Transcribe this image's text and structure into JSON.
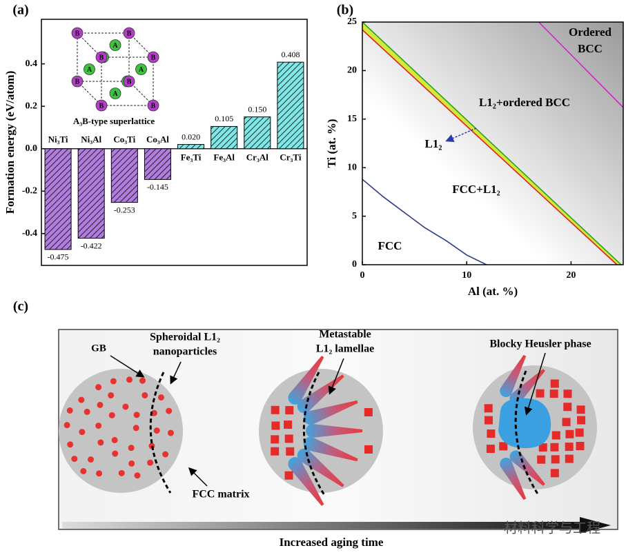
{
  "panel_labels": [
    "(a)",
    "(b)",
    "(c)"
  ],
  "chart_data": [
    {
      "type": "bar",
      "y_label": "Formation energy (eV/atom)",
      "categories": [
        "Ni₃Ti",
        "Ni₃Al",
        "Co₃Ti",
        "Co₃Al",
        "Fe₃Ti",
        "Fe₃Al",
        "Cr₃Al",
        "Cr₃Ti"
      ],
      "values": [
        -0.475,
        -0.422,
        -0.253,
        -0.145,
        0.02,
        0.105,
        0.15,
        0.408
      ],
      "value_labels": [
        "-0.475",
        "-0.422",
        "-0.253",
        "-0.145",
        "0.020",
        "0.105",
        "0.150",
        "0.408"
      ],
      "colors": [
        "#b07ddc",
        "#b07ddc",
        "#b07ddc",
        "#b07ddc",
        "#80e6e6",
        "#80e6e6",
        "#80e6e6",
        "#80e6e6"
      ],
      "ylim": [
        -0.55,
        0.61
      ],
      "yticks": [
        -0.4,
        -0.2,
        {
          "value": 0,
          "label": "0.0"
        },
        0.2,
        0.4
      ],
      "inset": {
        "caption": "A₃B-type superlattice",
        "atoms": [
          {
            "label": "A",
            "color": "#3fc23f"
          },
          {
            "label": "B",
            "color": "#b43cc8"
          }
        ]
      }
    },
    {
      "type": "line",
      "x_label": "Al (at. %)",
      "y_label": "Ti (at. %)",
      "xlim": [
        0,
        25
      ],
      "ylim": [
        0,
        25
      ],
      "xticks": [
        0,
        10,
        20
      ],
      "yticks": [
        0,
        5,
        10,
        15,
        20,
        25
      ],
      "band_color": "#d4e83a",
      "series": [
        {
          "color": "#e02020",
          "x": [
            0,
            24.4
          ],
          "values": [
            24.2,
            0
          ]
        },
        {
          "color": "#2aa02a",
          "x": [
            0,
            24.8
          ],
          "values": [
            25,
            0
          ]
        },
        {
          "color": "#2b3a8a",
          "x": [
            0,
            2,
            4,
            6,
            8,
            10,
            11.9
          ],
          "values": [
            8.8,
            7.0,
            5.4,
            3.8,
            2.5,
            1.0,
            0
          ]
        },
        {
          "color": "#d020d0",
          "x": [
            16.9,
            25
          ],
          "values": [
            25,
            16.2
          ]
        }
      ],
      "annotations": [
        {
          "lines": [
            "Ordered",
            "BCC"
          ]
        },
        {
          "lines": [
            "L1₂+ordered BCC"
          ]
        },
        {
          "lines": [
            "L1₂"
          ]
        },
        {
          "lines": [
            "FCC+L1₂"
          ]
        },
        {
          "lines": [
            "FCC"
          ]
        }
      ]
    }
  ],
  "diagram": {
    "gb": "GB",
    "spheroidal": [
      "Spheroidal L1₂",
      "nanoparticles"
    ],
    "fcc_matrix": "FCC matrix",
    "metastable": [
      "Metastable",
      "L1₂ lamellae"
    ],
    "heusler": "Blocky Heusler phase",
    "time_axis": "Increased aging time",
    "watermark": "材料科学与工程"
  }
}
